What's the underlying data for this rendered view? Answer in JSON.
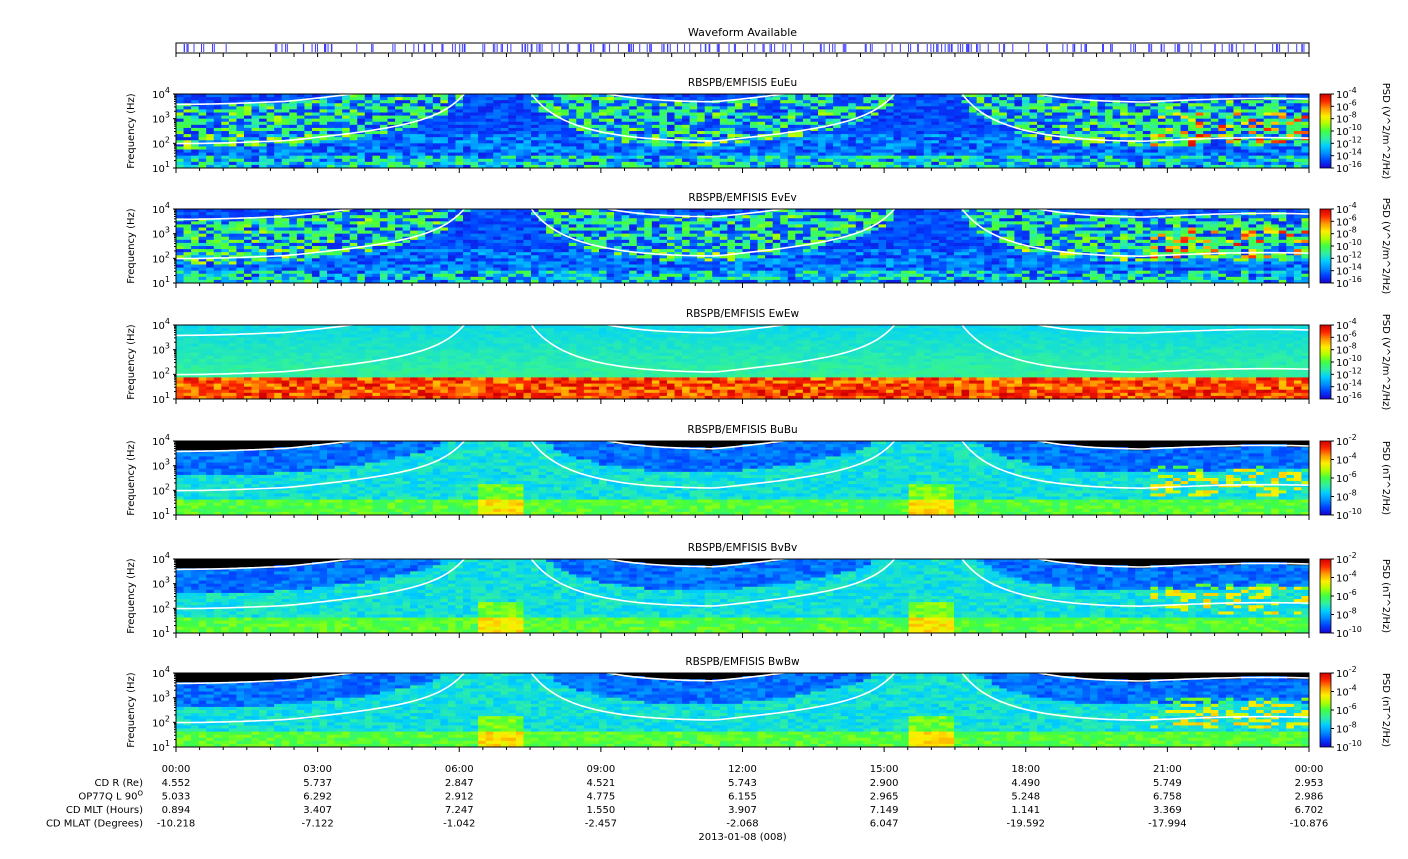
{
  "colors": {
    "spectrogram_scale": [
      "#1a00d0",
      "#0040ff",
      "#0090ff",
      "#00d0ff",
      "#30f0a0",
      "#40ff40",
      "#b0ff00",
      "#ffee00",
      "#ff9a00",
      "#ff2800",
      "#d00000"
    ],
    "background_low": "#000000",
    "waveform_mark": "#3c3cff",
    "fce_curve": "#ffffff"
  },
  "header": {
    "waveform_title": "Waveform Available"
  },
  "chart_data": [
    {
      "type": "heatmap",
      "title": "RBSPB/EMFISIS  EuEu",
      "ylabel": "Frequency (Hz)",
      "y_scale": "log",
      "ylim": [
        10,
        10000
      ],
      "y_ticks": [
        {
          "base": "10",
          "exp": "1"
        },
        {
          "base": "10",
          "exp": "2"
        },
        {
          "base": "10",
          "exp": "3"
        },
        {
          "base": "10",
          "exp": "4"
        }
      ],
      "colorbar_label": "PSD (V^2/m^2/Hz)",
      "colorbar_ticks": [
        {
          "base": "10",
          "exp": "-4"
        },
        {
          "base": "10",
          "exp": "-6"
        },
        {
          "base": "10",
          "exp": "-8"
        },
        {
          "base": "10",
          "exp": "-10"
        },
        {
          "base": "10",
          "exp": "-12"
        },
        {
          "base": "10",
          "exp": "-14"
        },
        {
          "base": "10",
          "exp": "-16"
        }
      ]
    },
    {
      "type": "heatmap",
      "title": "RBSPB/EMFISIS  EvEv",
      "ylabel": "Frequency (Hz)",
      "y_scale": "log",
      "ylim": [
        10,
        10000
      ],
      "y_ticks": [
        {
          "base": "10",
          "exp": "1"
        },
        {
          "base": "10",
          "exp": "2"
        },
        {
          "base": "10",
          "exp": "3"
        },
        {
          "base": "10",
          "exp": "4"
        }
      ],
      "colorbar_label": "PSD (V^2/m^2/Hz)",
      "colorbar_ticks": [
        {
          "base": "10",
          "exp": "-4"
        },
        {
          "base": "10",
          "exp": "-6"
        },
        {
          "base": "10",
          "exp": "-8"
        },
        {
          "base": "10",
          "exp": "-10"
        },
        {
          "base": "10",
          "exp": "-12"
        },
        {
          "base": "10",
          "exp": "-14"
        },
        {
          "base": "10",
          "exp": "-16"
        }
      ]
    },
    {
      "type": "heatmap",
      "title": "RBSPB/EMFISIS  EwEw",
      "ylabel": "Frequency (Hz)",
      "y_scale": "log",
      "ylim": [
        10,
        10000
      ],
      "y_ticks": [
        {
          "base": "10",
          "exp": "1"
        },
        {
          "base": "10",
          "exp": "2"
        },
        {
          "base": "10",
          "exp": "3"
        },
        {
          "base": "10",
          "exp": "4"
        }
      ],
      "colorbar_label": "PSD (V^2/m^2/Hz)",
      "colorbar_ticks": [
        {
          "base": "10",
          "exp": "-4"
        },
        {
          "base": "10",
          "exp": "-6"
        },
        {
          "base": "10",
          "exp": "-8"
        },
        {
          "base": "10",
          "exp": "-10"
        },
        {
          "base": "10",
          "exp": "-12"
        },
        {
          "base": "10",
          "exp": "-14"
        },
        {
          "base": "10",
          "exp": "-16"
        }
      ]
    },
    {
      "type": "heatmap",
      "title": "RBSPB/EMFISIS  BuBu",
      "ylabel": "Frequency (Hz)",
      "y_scale": "log",
      "ylim": [
        10,
        10000
      ],
      "y_ticks": [
        {
          "base": "10",
          "exp": "1"
        },
        {
          "base": "10",
          "exp": "2"
        },
        {
          "base": "10",
          "exp": "3"
        },
        {
          "base": "10",
          "exp": "4"
        }
      ],
      "colorbar_label": "PSD (nT^2/Hz)",
      "colorbar_ticks": [
        {
          "base": "10",
          "exp": "-2"
        },
        {
          "base": "10",
          "exp": "-4"
        },
        {
          "base": "10",
          "exp": "-6"
        },
        {
          "base": "10",
          "exp": "-8"
        },
        {
          "base": "10",
          "exp": "-10"
        }
      ]
    },
    {
      "type": "heatmap",
      "title": "RBSPB/EMFISIS  BvBv",
      "ylabel": "Frequency (Hz)",
      "y_scale": "log",
      "ylim": [
        10,
        10000
      ],
      "y_ticks": [
        {
          "base": "10",
          "exp": "1"
        },
        {
          "base": "10",
          "exp": "2"
        },
        {
          "base": "10",
          "exp": "3"
        },
        {
          "base": "10",
          "exp": "4"
        }
      ],
      "colorbar_label": "PSD (nT^2/Hz)",
      "colorbar_ticks": [
        {
          "base": "10",
          "exp": "-2"
        },
        {
          "base": "10",
          "exp": "-4"
        },
        {
          "base": "10",
          "exp": "-6"
        },
        {
          "base": "10",
          "exp": "-8"
        },
        {
          "base": "10",
          "exp": "-10"
        }
      ]
    },
    {
      "type": "heatmap",
      "title": "RBSPB/EMFISIS  BwBw",
      "ylabel": "Frequency (Hz)",
      "y_scale": "log",
      "ylim": [
        10,
        10000
      ],
      "y_ticks": [
        {
          "base": "10",
          "exp": "1"
        },
        {
          "base": "10",
          "exp": "2"
        },
        {
          "base": "10",
          "exp": "3"
        },
        {
          "base": "10",
          "exp": "4"
        }
      ],
      "colorbar_label": "PSD (nT^2/Hz)",
      "colorbar_ticks": [
        {
          "base": "10",
          "exp": "-2"
        },
        {
          "base": "10",
          "exp": "-4"
        },
        {
          "base": "10",
          "exp": "-6"
        },
        {
          "base": "10",
          "exp": "-8"
        },
        {
          "base": "10",
          "exp": "-10"
        }
      ]
    }
  ],
  "x_axis": {
    "tick_labels": [
      "00:00",
      "03:00",
      "06:00",
      "09:00",
      "12:00",
      "15:00",
      "18:00",
      "21:00",
      "00:00"
    ],
    "date_label": "2013-01-08 (008)"
  },
  "ephemeris": {
    "rows": [
      {
        "label": "CD R (Re)",
        "values": [
          "4.552",
          "5.737",
          "2.847",
          "4.521",
          "5.743",
          "2.900",
          "4.490",
          "5.749",
          "2.953"
        ]
      },
      {
        "label": "OP77Q L 90",
        "label_sup": "O",
        "values": [
          "5.033",
          "6.292",
          "2.912",
          "4.775",
          "6.155",
          "2.965",
          "5.248",
          "6.758",
          "2.986"
        ]
      },
      {
        "label": "CD MLT (Hours)",
        "values": [
          "0.894",
          "3.407",
          "7.247",
          "1.550",
          "3.907",
          "7.149",
          "1.141",
          "3.369",
          "6.702"
        ]
      },
      {
        "label": "CD MLAT (Degrees)",
        "values": [
          "-10.218",
          "-7.122",
          "-1.042",
          "-2.457",
          "-2.068",
          "6.047",
          "-19.592",
          "-17.994",
          "-10.876"
        ]
      }
    ]
  }
}
